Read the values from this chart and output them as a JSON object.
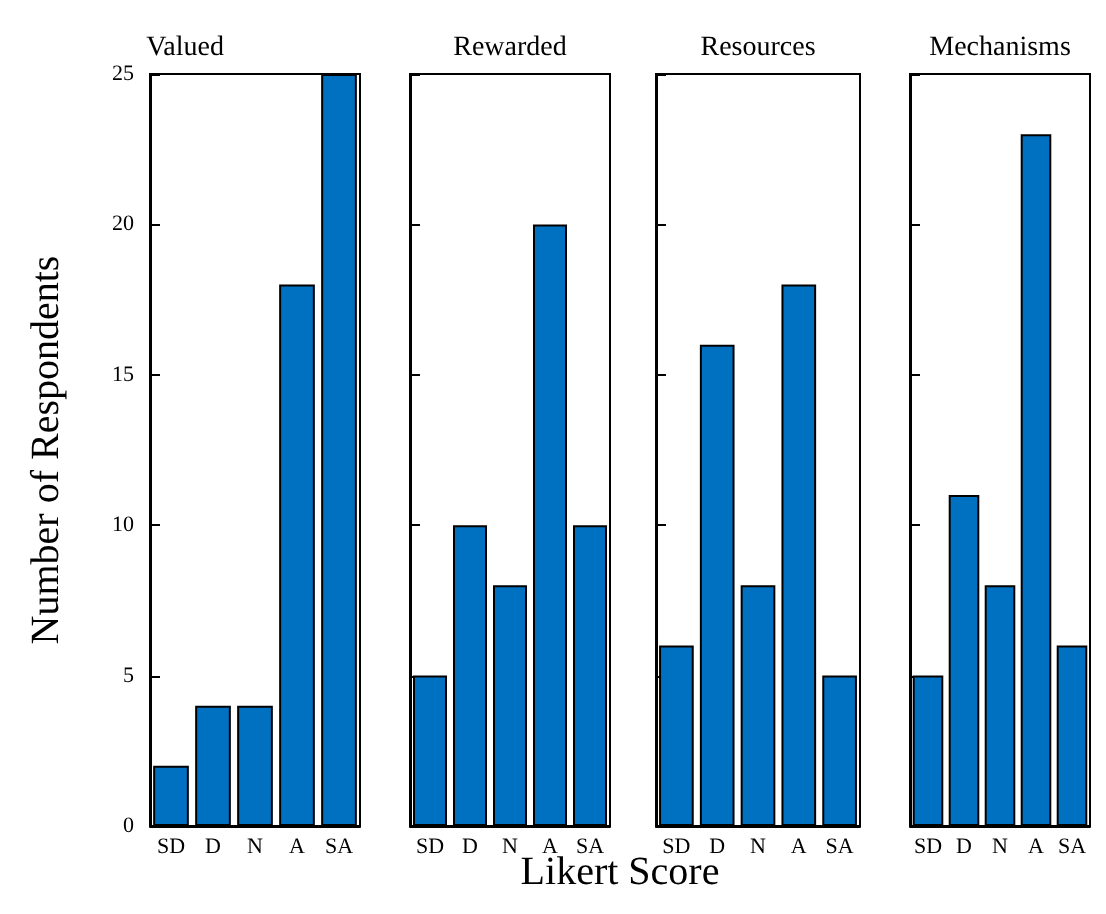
{
  "chart_data": [
    {
      "type": "bar",
      "title": "Valued",
      "ylabel": "Number of Respondents",
      "xlabel": "Likert Score",
      "categories": [
        "SD",
        "D",
        "N",
        "A",
        "SA"
      ],
      "values": [
        2,
        4,
        4,
        18,
        25
      ],
      "color": "#0070c0",
      "ylim": [
        0,
        25
      ],
      "yticks": [
        0,
        5,
        10,
        15,
        20,
        25
      ],
      "grid": false
    },
    {
      "type": "bar",
      "title": "Rewarded",
      "categories": [
        "SD",
        "D",
        "N",
        "A",
        "SA"
      ],
      "values": [
        5,
        10,
        8,
        20,
        10
      ],
      "color": "#0070c0",
      "ylim": [
        0,
        25
      ],
      "yticks": [
        0,
        5,
        10,
        15,
        20,
        25
      ],
      "grid": false,
      "tick_labels": "x"
    },
    {
      "type": "bar",
      "title": "Resources",
      "categories": [
        "SD",
        "D",
        "N",
        "A",
        "SA"
      ],
      "values": [
        6,
        16,
        8,
        18,
        5
      ],
      "color": "#0070c0",
      "ylim": [
        0,
        25
      ],
      "yticks": [
        0,
        5,
        10,
        15,
        20,
        25
      ],
      "grid": false,
      "tick_labels": "x"
    },
    {
      "type": "bar",
      "title": "Mechanisms",
      "categories": [
        "SD",
        "D",
        "N",
        "A",
        "SA"
      ],
      "values": [
        5,
        11,
        8,
        23,
        6
      ],
      "color": "#0070c0",
      "ylim": [
        0,
        25
      ],
      "yticks": [
        0,
        5,
        10,
        15,
        20,
        25
      ],
      "grid": false,
      "tick_labels": "x"
    }
  ]
}
